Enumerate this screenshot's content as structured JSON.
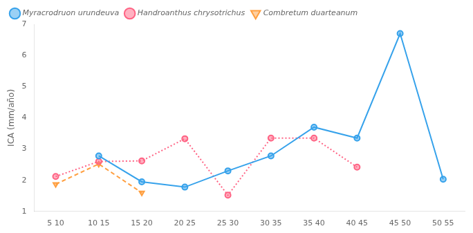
{
  "chart_data": {
    "type": "line",
    "categories": [
      "5 10",
      "10 15",
      "15 20",
      "20 25",
      "25 30",
      "30 35",
      "35 40",
      "40 45",
      "45 50",
      "50 55"
    ],
    "series": [
      {
        "name": "Myracrodruon urundeuva",
        "values": [
          null,
          2.78,
          1.95,
          1.78,
          2.3,
          2.78,
          3.7,
          3.35,
          6.7,
          2.03
        ],
        "marker": "circle",
        "line_style": "solid"
      },
      {
        "name": "Handroanthus chrysotrichus",
        "values": [
          2.12,
          2.6,
          2.62,
          3.33,
          1.52,
          3.35,
          3.35,
          2.42,
          null,
          null
        ],
        "marker": "circle",
        "line_style": "dotted"
      },
      {
        "name": "Combretum duarteanum",
        "values": [
          1.87,
          2.52,
          1.6,
          null,
          null,
          null,
          null,
          null,
          null,
          null
        ],
        "marker": "triangle_down",
        "line_style": "dashed"
      }
    ],
    "y_label": "ICA (mm/año)",
    "ylim": [
      1,
      7
    ],
    "yticks": [
      1,
      2,
      3,
      4,
      5,
      6,
      7
    ],
    "grid": false,
    "legend": "upper left"
  }
}
